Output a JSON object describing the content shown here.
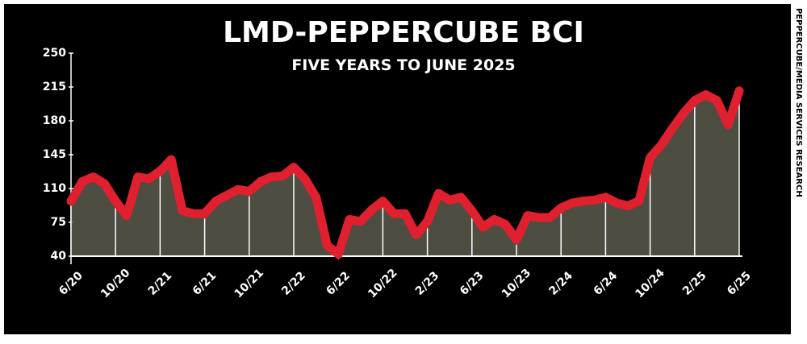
{
  "chart_data": {
    "type": "line",
    "title": "LMD-PEPPERCUBE BCI",
    "subtitle": "FIVE YEARS TO JUNE 2025",
    "source": "PEPPERCUBE/MEDIA SERVICES RESEARCH",
    "categories": [
      "6/20",
      null,
      null,
      null,
      "10/20",
      null,
      null,
      null,
      "2/21",
      null,
      null,
      null,
      "6/21",
      null,
      null,
      null,
      "10/21",
      null,
      null,
      null,
      "2/22",
      null,
      null,
      null,
      "6/22",
      null,
      null,
      null,
      "10/22",
      null,
      null,
      null,
      "2/23",
      null,
      null,
      null,
      "6/23",
      null,
      null,
      null,
      "10/23",
      null,
      null,
      null,
      "2/24",
      null,
      null,
      null,
      "6/24",
      null,
      null,
      null,
      "10/24",
      null,
      null,
      null,
      "2/25",
      null,
      null,
      null,
      "6/25"
    ],
    "values": [
      97,
      117,
      122,
      115,
      97,
      82,
      122,
      120,
      128,
      140,
      87,
      84,
      84,
      97,
      103,
      109,
      107,
      117,
      122,
      123,
      132,
      120,
      101,
      51,
      42,
      78,
      76,
      88,
      97,
      84,
      84,
      62,
      76,
      105,
      98,
      101,
      87,
      70,
      78,
      73,
      57,
      82,
      80,
      80,
      90,
      95,
      97,
      98,
      101,
      95,
      92,
      97,
      142,
      155,
      172,
      188,
      201,
      207,
      201,
      176,
      211
    ],
    "color": "#e0202e",
    "ylim": [
      40,
      250
    ],
    "yticks": [
      40,
      75,
      110,
      145,
      180,
      215,
      250
    ]
  }
}
